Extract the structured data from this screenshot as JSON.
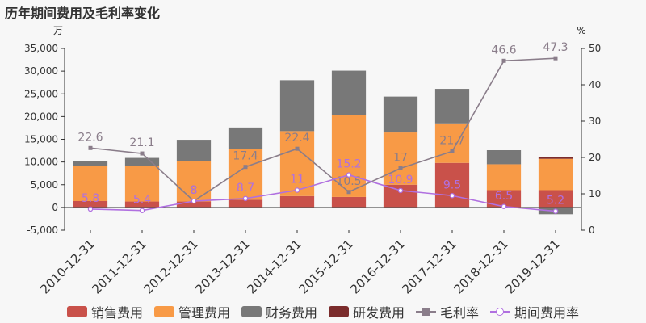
{
  "title": "历年期间费用及毛利率变化",
  "chart_data": {
    "type": "bar",
    "categories": [
      "2010-12-31",
      "2011-12-31",
      "2012-12-31",
      "2013-12-31",
      "2014-12-31",
      "2015-12-31",
      "2016-12-31",
      "2017-12-31",
      "2018-12-31",
      "2019-12-31"
    ],
    "left_axis": {
      "unit": "万",
      "min": -5000,
      "max": 35000,
      "step": 5000,
      "tick_labels": [
        "-5,000",
        "0",
        "5,000",
        "10,000",
        "15,000",
        "20,000",
        "25,000",
        "30,000",
        "35,000"
      ]
    },
    "right_axis": {
      "unit": "%",
      "min": 0,
      "max": 50,
      "step": 10,
      "tick_labels": [
        "0",
        "10",
        "20",
        "30",
        "40",
        "50"
      ]
    },
    "series": [
      {
        "name": "销售费用",
        "kind": "bar",
        "axis": "left",
        "color": "#c9514a",
        "values": [
          1400,
          1300,
          1300,
          1700,
          2500,
          2300,
          5000,
          9800,
          3800,
          3800
        ]
      },
      {
        "name": "管理费用",
        "kind": "bar",
        "axis": "left",
        "color": "#f89a46",
        "values": [
          7800,
          7900,
          8900,
          11200,
          14300,
          18100,
          11500,
          8700,
          5700,
          6900
        ]
      },
      {
        "name": "财务费用",
        "kind": "bar",
        "axis": "left",
        "color": "#787878",
        "values": [
          1000,
          1700,
          4700,
          4700,
          11200,
          9700,
          7900,
          7600,
          3100,
          -1500
        ]
      },
      {
        "name": "研发费用",
        "kind": "bar",
        "axis": "left",
        "color": "#7b2c2c",
        "values": [
          0,
          0,
          0,
          0,
          0,
          0,
          0,
          0,
          0,
          400
        ]
      },
      {
        "name": "毛利率",
        "kind": "line",
        "axis": "right",
        "color": "#8a7d8a",
        "marker": "square",
        "values": [
          22.6,
          21.1,
          8,
          17.4,
          22.4,
          10.5,
          17,
          21.7,
          46.6,
          47.3
        ],
        "labels": [
          "22.6",
          "21.1",
          "8",
          "17.4",
          "22.4",
          "10.5",
          "17",
          "21.7",
          "46.6",
          "47.3"
        ]
      },
      {
        "name": "期间费用率",
        "kind": "line",
        "axis": "right",
        "color": "#b070e0",
        "marker": "circle",
        "values": [
          5.8,
          5.4,
          8,
          8.7,
          11,
          15.2,
          10.9,
          9.5,
          6.5,
          5.2
        ],
        "labels": [
          "5.8",
          "5.4",
          "8",
          "8.7",
          "11",
          "15.2",
          "10.9",
          "9.5",
          "6.5",
          "5.2"
        ]
      }
    ],
    "stacked": true,
    "grid": false,
    "legend_position": "bottom"
  }
}
